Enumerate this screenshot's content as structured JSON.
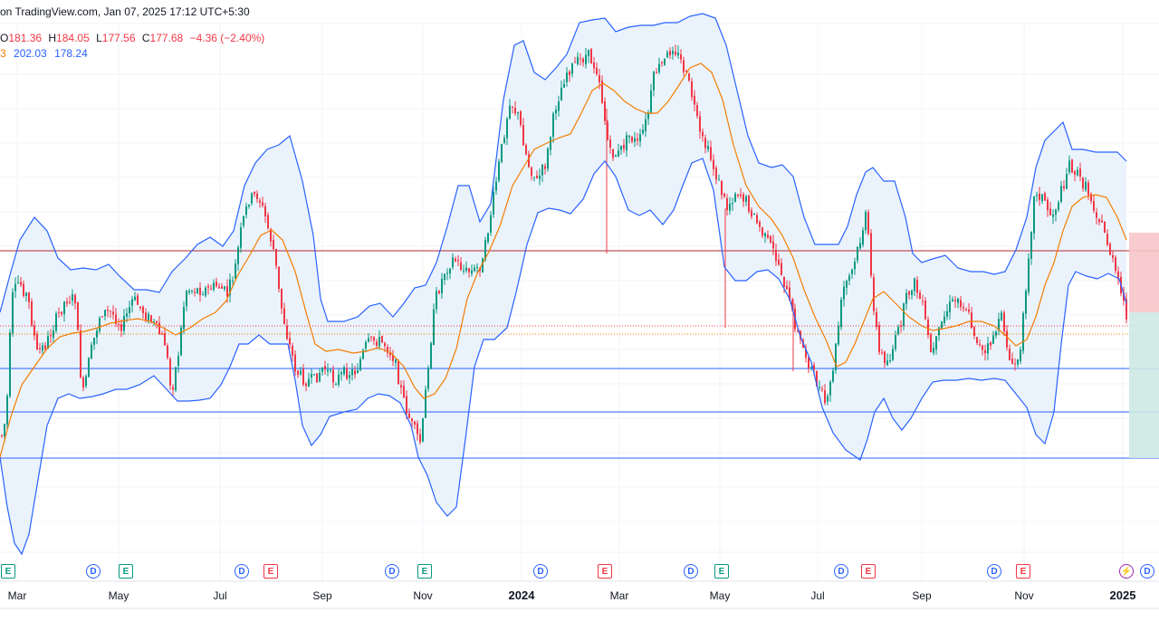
{
  "header": {
    "source_text": "on TradingView.com, Jan 07, 2025 17:12 UTC+5:30"
  },
  "ohlc": {
    "o_label": "O",
    "o": "181.36",
    "h_label": "H",
    "h": "184.05",
    "l_label": "L",
    "l": "177.56",
    "c_label": "C",
    "c": "177.68",
    "change": "−4.36 (−2.40%)"
  },
  "indicator": {
    "first": "3",
    "upper": "202.03",
    "lower": "178.24"
  },
  "colors": {
    "up": "#089981",
    "down": "#f23645",
    "bb_line": "#2962ff",
    "bb_fill": "#eaf3fc",
    "basis": "#f57c00",
    "red_level": "#b22833",
    "blue_level": "#2962ff",
    "zone_red": "#f7c5c9",
    "zone_green": "#cde9e3",
    "grid": "#f0f3fa"
  },
  "events": [
    {
      "type": "earnings-green",
      "letter": "E"
    },
    {
      "type": "dividend",
      "letter": "D"
    },
    {
      "type": "earnings-green",
      "letter": "E"
    },
    {
      "type": "dividend",
      "letter": "D"
    },
    {
      "type": "earnings-red",
      "letter": "E"
    },
    {
      "type": "dividend",
      "letter": "D"
    },
    {
      "type": "earnings-green",
      "letter": "E"
    },
    {
      "type": "dividend",
      "letter": "D"
    },
    {
      "type": "earnings-red",
      "letter": "E"
    },
    {
      "type": "dividend",
      "letter": "D"
    },
    {
      "type": "earnings-green",
      "letter": "E"
    },
    {
      "type": "dividend",
      "letter": "D"
    },
    {
      "type": "earnings-red",
      "letter": "E"
    },
    {
      "type": "dividend",
      "letter": "D"
    },
    {
      "type": "earnings-red",
      "letter": "E"
    },
    {
      "type": "split",
      "letter": "⚡"
    },
    {
      "type": "dividend",
      "letter": "D"
    }
  ],
  "chart_data": {
    "type": "candlestick",
    "x_tick_labels": [
      "Mar",
      "May",
      "Jul",
      "Sep",
      "Nov",
      "2024",
      "Mar",
      "May",
      "Jul",
      "Sep",
      "Nov",
      "2025"
    ],
    "major_ticks": [
      "2024",
      "2025"
    ],
    "indicators": [
      "Bollinger Bands (upper, lower, basis)"
    ],
    "horizontal_levels": [
      "red resistance line",
      "blue support line 1",
      "blue support line 2",
      "blue support line 3"
    ],
    "last_candle": {
      "open": 181.36,
      "high": 184.05,
      "low": 177.56,
      "close": 177.68
    }
  }
}
